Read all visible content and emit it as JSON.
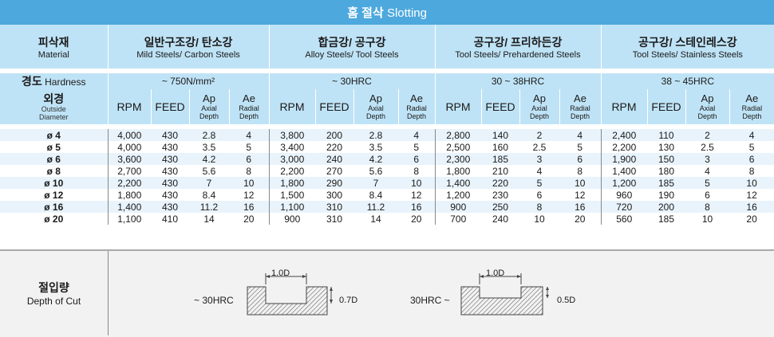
{
  "title": {
    "ko": "홈 절삭",
    "en": "Slotting"
  },
  "header": {
    "material_ko": "피삭재",
    "material_en": "Material",
    "groups": [
      {
        "ko": "일반구조강/ 탄소강",
        "en": "Mild Steels/ Carbon Steels"
      },
      {
        "ko": "합금강/ 공구강",
        "en": "Alloy Steels/ Tool Steels"
      },
      {
        "ko": "공구강/ 프리하든강",
        "en": "Tool Steels/ Prehardened Steels"
      },
      {
        "ko": "공구강/ 스테인레스강",
        "en": "Tool Steels/ Stainless Steels"
      }
    ]
  },
  "hardness": {
    "label_ko": "경도",
    "label_en": "Hardness",
    "values": [
      "~ 750N/mm²",
      "~ 30HRC",
      "30 ~ 38HRC",
      "38 ~ 45HRC"
    ]
  },
  "diameter": {
    "ko": "외경",
    "en1": "Outside",
    "en2": "Diameter"
  },
  "cols": {
    "rpm": "RPM",
    "feed": "FEED",
    "ap": "Ap",
    "ap_sub1": "Axial",
    "ap_sub2": "Depth",
    "ae": "Ae",
    "ae_sub1": "Radial",
    "ae_sub2": "Depth"
  },
  "rows": [
    {
      "d": "ø 4",
      "v": [
        "4,000",
        "430",
        "2.8",
        "4",
        "3,800",
        "200",
        "2.8",
        "4",
        "2,800",
        "140",
        "2",
        "4",
        "2,400",
        "110",
        "2",
        "4"
      ]
    },
    {
      "d": "ø 5",
      "v": [
        "4,000",
        "430",
        "3.5",
        "5",
        "3,400",
        "220",
        "3.5",
        "5",
        "2,500",
        "160",
        "2.5",
        "5",
        "2,200",
        "130",
        "2.5",
        "5"
      ]
    },
    {
      "d": "ø 6",
      "v": [
        "3,600",
        "430",
        "4.2",
        "6",
        "3,000",
        "240",
        "4.2",
        "6",
        "2,300",
        "185",
        "3",
        "6",
        "1,900",
        "150",
        "3",
        "6"
      ]
    },
    {
      "d": "ø 8",
      "v": [
        "2,700",
        "430",
        "5.6",
        "8",
        "2,200",
        "270",
        "5.6",
        "8",
        "1,800",
        "210",
        "4",
        "8",
        "1,400",
        "180",
        "4",
        "8"
      ]
    },
    {
      "d": "ø 10",
      "v": [
        "2,200",
        "430",
        "7",
        "10",
        "1,800",
        "290",
        "7",
        "10",
        "1,400",
        "220",
        "5",
        "10",
        "1,200",
        "185",
        "5",
        "10"
      ]
    },
    {
      "d": "ø 12",
      "v": [
        "1,800",
        "430",
        "8.4",
        "12",
        "1,500",
        "300",
        "8.4",
        "12",
        "1,200",
        "230",
        "6",
        "12",
        "960",
        "190",
        "6",
        "12"
      ]
    },
    {
      "d": "ø 16",
      "v": [
        "1,400",
        "430",
        "11.2",
        "16",
        "1,100",
        "310",
        "11.2",
        "16",
        "900",
        "250",
        "8",
        "16",
        "720",
        "200",
        "8",
        "16"
      ]
    },
    {
      "d": "ø 20",
      "v": [
        "1,100",
        "410",
        "14",
        "20",
        "900",
        "310",
        "14",
        "20",
        "700",
        "240",
        "10",
        "20",
        "560",
        "185",
        "10",
        "20"
      ]
    }
  ],
  "depth_of_cut": {
    "label_ko": "절입량",
    "label_en": "Depth of Cut",
    "a": {
      "range": "~ 30HRC",
      "width": "1.0D",
      "depth": "0.7D"
    },
    "b": {
      "range": "30HRC ~",
      "width": "1.0D",
      "depth": "0.5D"
    }
  }
}
